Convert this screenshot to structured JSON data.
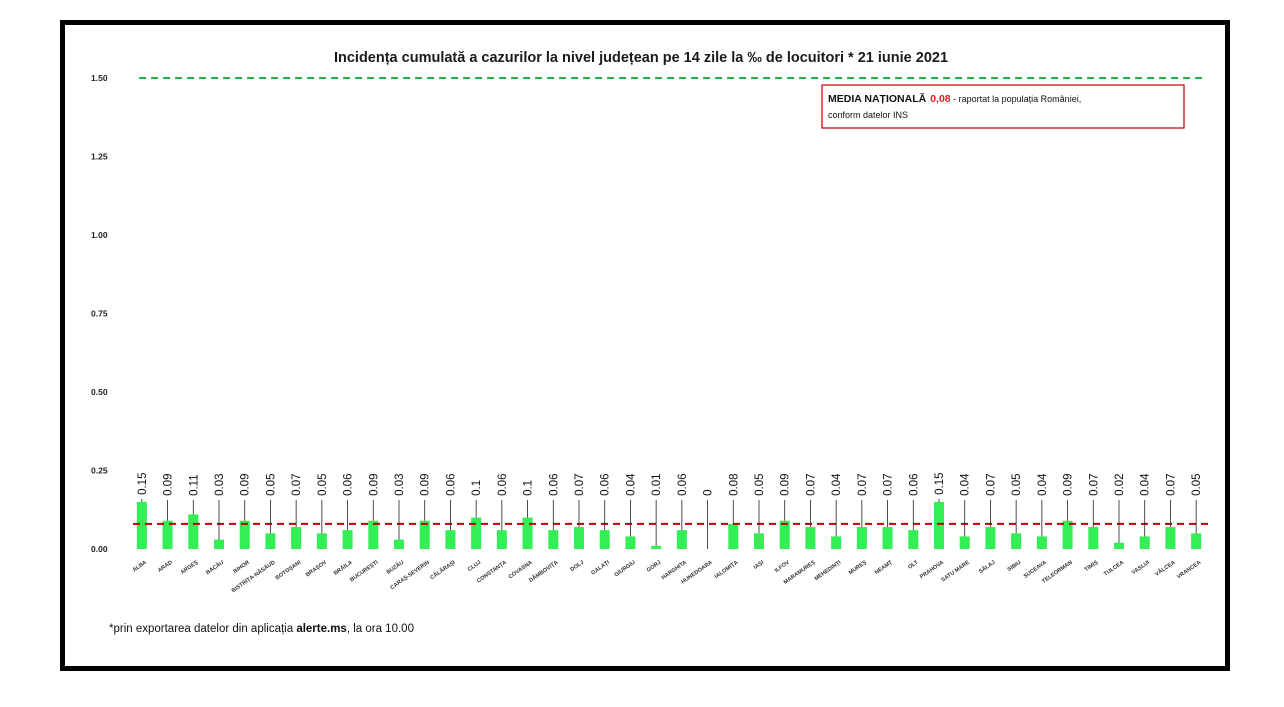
{
  "chart_data": {
    "type": "bar",
    "title": "Incidența cumulată a cazurilor la nivel județean pe 14 zile la ‰ de locuitori *  21 iunie 2021",
    "xlabel": "",
    "ylabel": "",
    "ylim": [
      0,
      1.5
    ],
    "yticks": [
      "0.00",
      "0.25",
      "0.50",
      "0.75",
      "1.00",
      "1.25",
      "1.50"
    ],
    "grid": false,
    "categories": [
      "ALBA",
      "ARAD",
      "ARGEȘ",
      "BACĂU",
      "BIHOR",
      "BISTRIȚA-NĂSĂUD",
      "BOTOȘANI",
      "BRAȘOV",
      "BRĂILA",
      "BUCUREȘTI",
      "BUZĂU",
      "CARAȘ-SEVERIN",
      "CĂLĂRAȘI",
      "CLUJ",
      "CONSTANȚA",
      "COVASNA",
      "DÂMBOVIȚA",
      "DOLJ",
      "GALAȚI",
      "GIURGIU",
      "GORJ",
      "HARGHITA",
      "HUNEDOARA",
      "IALOMIȚA",
      "IAȘI",
      "ILFOV",
      "MARAMUREȘ",
      "MEHEDINȚI",
      "MUREȘ",
      "NEAMȚ",
      "OLT",
      "PRAHOVA",
      "SATU MARE",
      "SĂLAJ",
      "SIBIU",
      "SUCEAVA",
      "TELEORMAN",
      "TIMIȘ",
      "TULCEA",
      "VASLUI",
      "VÂLCEA",
      "VRANCEA"
    ],
    "values": [
      0.15,
      0.09,
      0.11,
      0.03,
      0.09,
      0.05,
      0.07,
      0.05,
      0.06,
      0.09,
      0.03,
      0.09,
      0.06,
      0.1,
      0.06,
      0.1,
      0.06,
      0.07,
      0.06,
      0.04,
      0.01,
      0.06,
      0,
      0.08,
      0.05,
      0.09,
      0.07,
      0.04,
      0.07,
      0.07,
      0.06,
      0.15,
      0.04,
      0.07,
      0.05,
      0.04,
      0.09,
      0.07,
      0.02,
      0.04,
      0.07,
      0.05
    ],
    "data_labels": [
      "0.15",
      "0.09",
      "0.11",
      "0.03",
      "0.09",
      "0.05",
      "0.07",
      "0.05",
      "0.06",
      "0.09",
      "0.03",
      "0.09",
      "0.06",
      "0.1",
      "0.06",
      "0.1",
      "0.06",
      "0.07",
      "0.06",
      "0.04",
      "0.01",
      "0.06",
      "0",
      "0.08",
      "0.05",
      "0.09",
      "0.07",
      "0.04",
      "0.07",
      "0.07",
      "0.06",
      "0.15",
      "0.04",
      "0.07",
      "0.05",
      "0.04",
      "0.09",
      "0.07",
      "0.02",
      "0.04",
      "0.07",
      "0.05"
    ],
    "reference_lines": [
      {
        "value": 1.5,
        "color": "#22b14c",
        "style": "dashed"
      },
      {
        "value": 0.08,
        "color": "#c00000",
        "style": "dashed"
      }
    ],
    "bar_color": "#33ee55",
    "annotation": {
      "bold_text": "MEDIA NAȚIONALĂ",
      "value_text": "0,08",
      "rest_line1": " - raportat la populația României,",
      "rest_line2": "conform datelor INS",
      "value_color": "#e31a1c",
      "border_color": "#c00000"
    },
    "footnote": {
      "prefix": "*prin exportarea datelor din aplicația ",
      "bold": "alerte.ms",
      "suffix": ", la ora 10.00"
    }
  }
}
